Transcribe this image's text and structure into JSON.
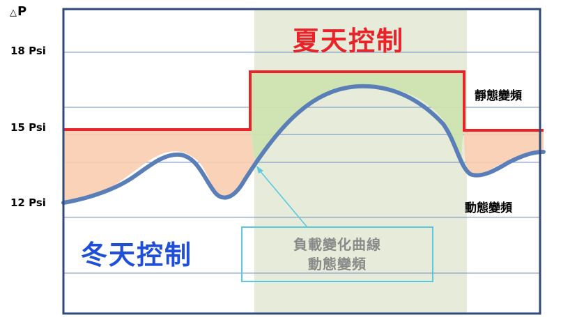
{
  "axis": {
    "title": "P",
    "title_symbol": "△",
    "ticks": [
      "18 Psi",
      "15 Psi",
      "12 Psi"
    ]
  },
  "labels": {
    "summer": "夏天控制",
    "winter": "冬天控制",
    "static_vfd": "靜態變頻",
    "dynamic_vfd": "動態變頻",
    "callout_line1": "負載變化曲線",
    "callout_line2": "動態變頻"
  },
  "colors": {
    "frame": "#2e4a7a",
    "gridline": "#6f8fc4",
    "summer_band": "#e6ecd9",
    "summer_fill": "#cfe3b0",
    "winter_fill": "#f9cdb0",
    "static_line": "#e8232a",
    "load_curve": "#5a7fb8",
    "callout": "#5bc8e0",
    "summer_text": "#e8232a",
    "winter_text": "#1f4fd6"
  }
}
